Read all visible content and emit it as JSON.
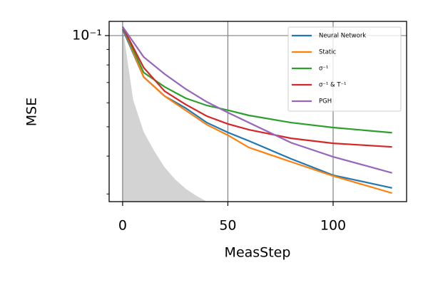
{
  "chart_data": {
    "type": "line",
    "x_label": "MeasStep",
    "y_label": "MSE",
    "x": [
      0,
      10,
      20,
      30,
      40,
      50,
      60,
      80,
      100,
      128
    ],
    "series": [
      {
        "name": "Neural Network",
        "color": "#1f77b4",
        "values": [
          0.105,
          0.073,
          0.0631,
          0.0576,
          0.0516,
          0.0479,
          0.0449,
          0.0392,
          0.0346,
          0.0314
        ]
      },
      {
        "name": "Static",
        "color": "#ff7f0e",
        "values": [
          0.107,
          0.073,
          0.0631,
          0.0566,
          0.0508,
          0.0469,
          0.0427,
          0.0383,
          0.0344,
          0.0302
        ]
      },
      {
        "name": "σ⁻¹",
        "color": "#2ca02c",
        "values": [
          0.107,
          0.0755,
          0.0677,
          0.0621,
          0.0588,
          0.0567,
          0.0545,
          0.0516,
          0.0497,
          0.0478
        ]
      },
      {
        "name": "σ⁻¹ & T⁻¹",
        "color": "#d62728",
        "values": [
          0.107,
          0.0784,
          0.0655,
          0.0592,
          0.0542,
          0.0511,
          0.0489,
          0.0458,
          0.0441,
          0.0429
        ]
      },
      {
        "name": "PGH",
        "color": "#9467bd",
        "values": [
          0.107,
          0.085,
          0.0746,
          0.0666,
          0.0604,
          0.0557,
          0.0516,
          0.0443,
          0.0398,
          0.0352
        ]
      }
    ],
    "shade": {
      "color": "#d3d3d3",
      "x": [
        0,
        5,
        10,
        15,
        20,
        25,
        30,
        35,
        40
      ],
      "values": [
        0.107,
        0.0614,
        0.0481,
        0.0416,
        0.0367,
        0.0335,
        0.0312,
        0.0296,
        0.0283
      ]
    },
    "xlim": [
      -6.4,
      134.9
    ],
    "xticks": [
      0,
      50,
      100
    ],
    "ylim": [
      0.0283,
      0.1114
    ],
    "log_y": true,
    "yticks": [
      {
        "value": 0.1,
        "label": "10⁻¹"
      }
    ],
    "yticks_minor": [
      0.03,
      0.04,
      0.05,
      0.06,
      0.07,
      0.08,
      0.09
    ],
    "grid": true,
    "legend": "upper right"
  }
}
